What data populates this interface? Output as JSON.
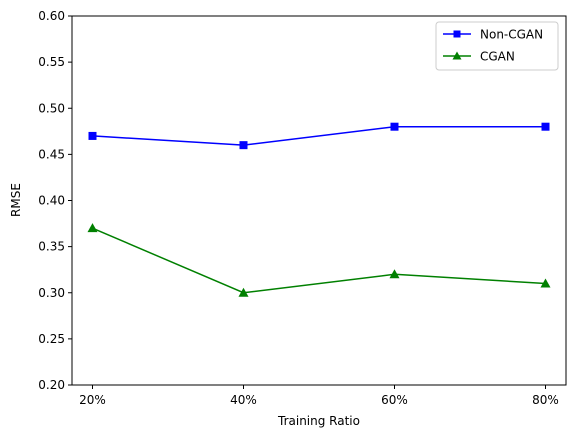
{
  "chart_data": {
    "type": "line",
    "title": "",
    "xlabel": "Training Ratio",
    "ylabel": "RMSE",
    "categories": [
      "20%",
      "40%",
      "60%",
      "80%"
    ],
    "ylim": [
      0.2,
      0.6
    ],
    "yticks": [
      "0.20",
      "0.25",
      "0.30",
      "0.35",
      "0.40",
      "0.45",
      "0.50",
      "0.55",
      "0.60"
    ],
    "grid": false,
    "legend_position": "top-right",
    "series": [
      {
        "name": "Non-CGAN",
        "values": [
          0.47,
          0.46,
          0.48,
          0.48
        ],
        "color": "#0000ff",
        "marker": "square"
      },
      {
        "name": "CGAN",
        "values": [
          0.37,
          0.3,
          0.32,
          0.31
        ],
        "color": "#008000",
        "marker": "triangle"
      }
    ]
  }
}
